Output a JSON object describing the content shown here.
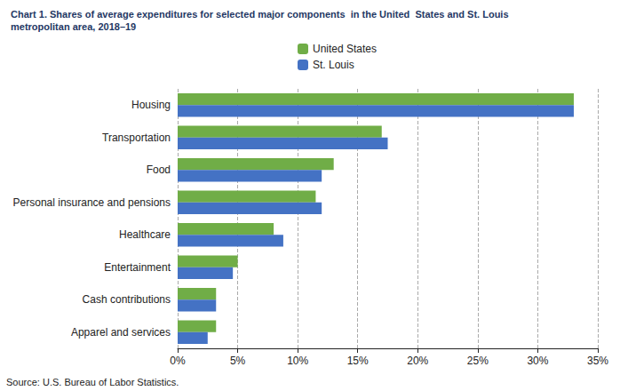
{
  "chart_data": {
    "type": "bar",
    "orientation": "horizontal",
    "title": "Chart 1. Shares of average expenditures for selected major components  in the United  States and St. Louis",
    "subtitle": "metropolitan area, 2018–19",
    "annotations": [
      "Source: U.S. Bureau of Labor Statistics."
    ],
    "categories": [
      "Housing",
      "Transportation",
      "Food",
      "Personal insurance and pensions",
      "Healthcare",
      "Entertainment",
      "Cash contributions",
      "Apparel and services"
    ],
    "series": [
      {
        "name": "United States",
        "color": "#70AD47",
        "values": [
          33.0,
          17.0,
          13.0,
          11.5,
          8.0,
          5.0,
          3.2,
          3.2
        ]
      },
      {
        "name": "St. Louis",
        "color": "#4472C4",
        "values": [
          33.0,
          17.5,
          12.0,
          12.0,
          8.8,
          4.6,
          3.2,
          2.5
        ]
      }
    ],
    "xlim": [
      0,
      35
    ],
    "xticks": [
      {
        "value": 0,
        "label": "0%"
      },
      {
        "value": 5,
        "label": "5%"
      },
      {
        "value": 10,
        "label": "10%"
      },
      {
        "value": 15,
        "label": "15%"
      },
      {
        "value": 20,
        "label": "20%"
      },
      {
        "value": 25,
        "label": "25%"
      },
      {
        "value": 30,
        "label": "30%"
      },
      {
        "value": 35,
        "label": "35%"
      }
    ],
    "grid": true,
    "legend": "top"
  }
}
